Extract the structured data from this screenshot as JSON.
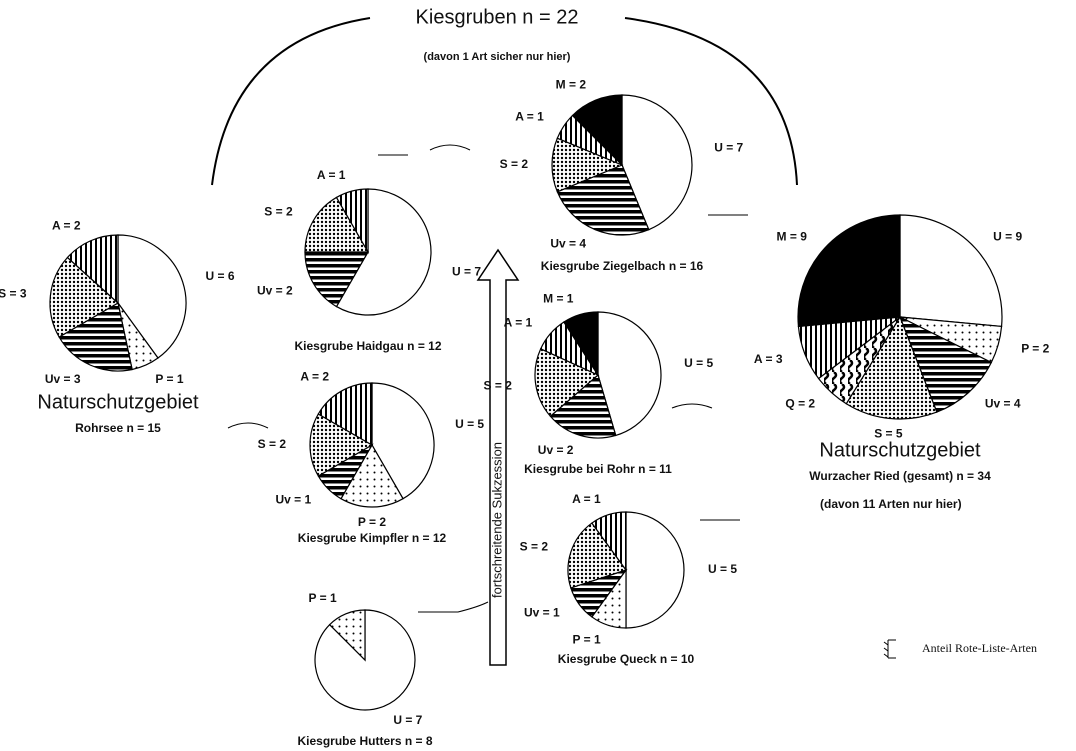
{
  "title": "Kiesgruben  n = 22",
  "subtitle": "(davon 1 Art sicher nur hier)",
  "arrow_label": "fortschreitende Sukzession",
  "legend_label": "Anteil Rote-Liste-Arten",
  "chart_data": [
    {
      "type": "pie",
      "heading": "Naturschutzgebiet",
      "title": "Rohrsee  n = 15",
      "values": [
        6,
        1,
        3,
        3,
        2
      ],
      "value_labels": [
        "U = 6",
        "P = 1",
        "Uv = 3",
        "S = 3",
        "A = 2"
      ],
      "fills": [
        "white",
        "dots",
        "stripes-h",
        "dots-dense",
        "stripes-v"
      ]
    },
    {
      "type": "pie",
      "title": "Kiesgrube Haidgau  n = 12",
      "values": [
        7,
        2,
        2,
        1
      ],
      "value_labels": [
        "U = 7",
        "Uv = 2",
        "S = 2",
        "A = 1"
      ],
      "fills": [
        "white",
        "stripes-h",
        "dots-dense",
        "stripes-v"
      ]
    },
    {
      "type": "pie",
      "title": "Kiesgrube Kimpfler  n = 12",
      "values": [
        5,
        2,
        1,
        2,
        2
      ],
      "value_labels": [
        "U = 5",
        "P = 2",
        "Uv = 1",
        "S = 2",
        "A = 2"
      ],
      "fills": [
        "white",
        "dots",
        "stripes-h",
        "dots-dense",
        "stripes-v"
      ]
    },
    {
      "type": "pie",
      "title": "Kiesgrube Hutters  n = 8",
      "values": [
        7,
        1
      ],
      "value_labels": [
        "U = 7",
        "P = 1"
      ],
      "fills": [
        "white",
        "dots"
      ]
    },
    {
      "type": "pie",
      "title": "Kiesgrube Ziegelbach  n = 16",
      "values": [
        7,
        4,
        2,
        1,
        2
      ],
      "value_labels": [
        "U = 7",
        "Uv = 4",
        "S = 2",
        "A = 1",
        "M = 2"
      ],
      "fills": [
        "white",
        "stripes-h",
        "dots-dense",
        "stripes-v",
        "black"
      ]
    },
    {
      "type": "pie",
      "title": "Kiesgrube bei Rohr  n = 11",
      "values": [
        5,
        2,
        2,
        1,
        1
      ],
      "value_labels": [
        "U = 5",
        "Uv = 2",
        "S = 2",
        "A = 1",
        "M = 1"
      ],
      "fills": [
        "white",
        "stripes-h",
        "dots-dense",
        "stripes-v",
        "black"
      ]
    },
    {
      "type": "pie",
      "title": "Kiesgrube Queck  n = 10",
      "values": [
        5,
        1,
        1,
        2,
        1
      ],
      "value_labels": [
        "U = 5",
        "P = 1",
        "Uv = 1",
        "S = 2",
        "A = 1"
      ],
      "fills": [
        "white",
        "dots",
        "stripes-h",
        "dots-dense",
        "stripes-v"
      ]
    },
    {
      "type": "pie",
      "heading": "Naturschutzgebiet",
      "title": "Wurzacher Ried (gesamt)  n = 34",
      "note": "(davon 11 Arten nur hier)",
      "values": [
        9,
        2,
        4,
        5,
        2,
        3,
        9
      ],
      "value_labels": [
        "U = 9",
        "P = 2",
        "Uv = 4",
        "S = 5",
        "Q = 2",
        "A = 3",
        "M = 9"
      ],
      "fills": [
        "white",
        "dots",
        "stripes-h",
        "dots-dense",
        "waves",
        "stripes-v",
        "black"
      ]
    }
  ]
}
